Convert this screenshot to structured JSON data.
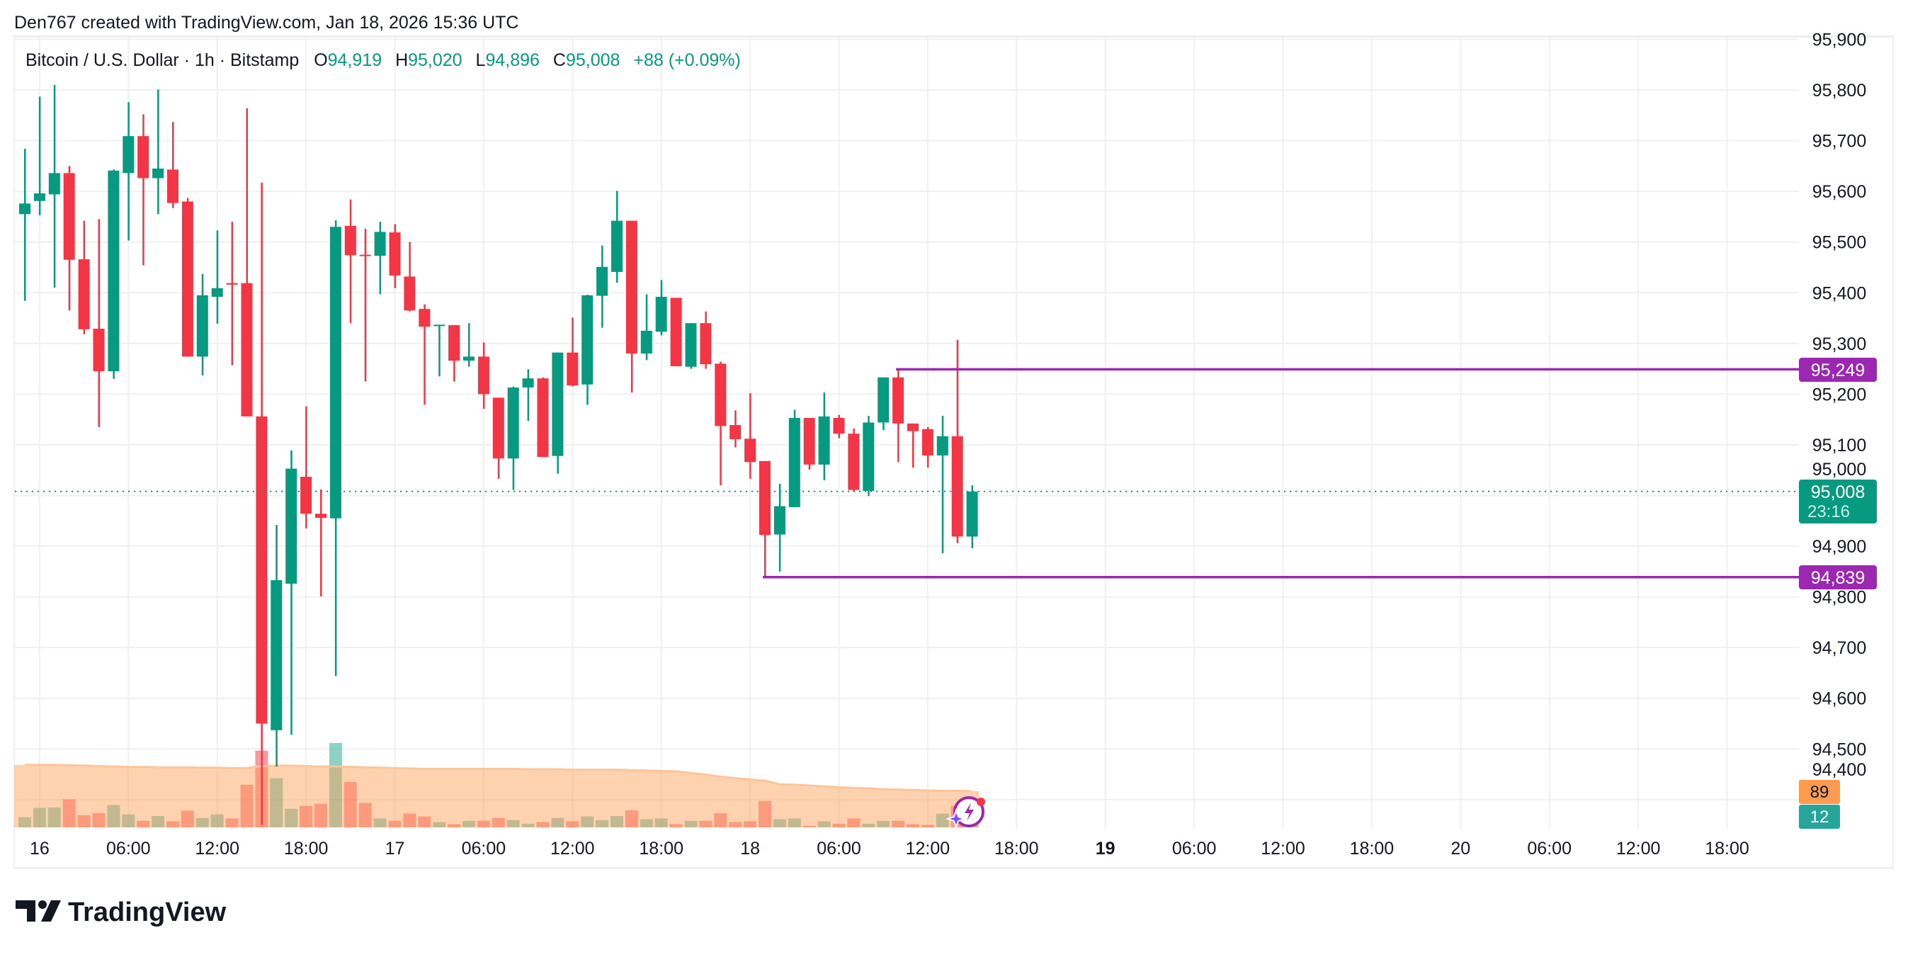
{
  "header": {
    "attribution": "Den767 created with TradingView.com, Jan 18, 2026 15:36 UTC"
  },
  "legend": {
    "symbol": "Bitcoin / U.S. Dollar · 1h · Bitstamp",
    "o_label": "O",
    "o": "94,919",
    "h_label": "H",
    "h": "95,020",
    "l_label": "L",
    "l": "94,896",
    "c_label": "C",
    "c": "95,008",
    "change": "+88 (+0.09%)"
  },
  "price_axis": {
    "labels": [
      "95,900",
      "95,800",
      "95,700",
      "95,600",
      "95,500",
      "95,400",
      "95,300",
      "95,200",
      "95,100",
      "95,000",
      "94,900",
      "94,800",
      "94,700",
      "94,600",
      "94,500",
      "94,400"
    ],
    "current_price": "95,008",
    "countdown": "23:16",
    "level_high": "95,249",
    "level_low": "94,839",
    "volume_ma_label": "89",
    "volume_label": "12"
  },
  "time_axis": {
    "labels": [
      {
        "text": "16",
        "bold": false
      },
      {
        "text": "06:00",
        "bold": false
      },
      {
        "text": "12:00",
        "bold": false
      },
      {
        "text": "18:00",
        "bold": false
      },
      {
        "text": "17",
        "bold": false
      },
      {
        "text": "06:00",
        "bold": false
      },
      {
        "text": "12:00",
        "bold": false
      },
      {
        "text": "18:00",
        "bold": false
      },
      {
        "text": "18",
        "bold": false
      },
      {
        "text": "06:00",
        "bold": false
      },
      {
        "text": "12:00",
        "bold": false
      },
      {
        "text": "18:00",
        "bold": false
      },
      {
        "text": "19",
        "bold": true
      },
      {
        "text": "06:00",
        "bold": false
      },
      {
        "text": "12:00",
        "bold": false
      },
      {
        "text": "18:00",
        "bold": false
      },
      {
        "text": "20",
        "bold": false
      },
      {
        "text": "06:00",
        "bold": false
      },
      {
        "text": "12:00",
        "bold": false
      },
      {
        "text": "18:00",
        "bold": false
      }
    ]
  },
  "logo": {
    "text": "TradingView"
  },
  "colors": {
    "up": "#089981",
    "down": "#f23645",
    "level": "#9c27b0",
    "volume_ma": "#ff9b4e",
    "text": "#131722",
    "grid": "#f0f0f0"
  },
  "chart_data": {
    "type": "candlestick",
    "interval": "1h",
    "first_candle": "Jan 15 23:00",
    "ylim": [
      94340,
      95920
    ],
    "current_price": 95008,
    "levels": [
      {
        "price": 95249,
        "from_index": 59
      },
      {
        "price": 94839,
        "from_index": 50
      }
    ],
    "ohlc": [
      [
        95555,
        95684,
        95384,
        95576
      ],
      [
        95581,
        95787,
        95553,
        95596
      ],
      [
        95594,
        95810,
        95410,
        95636
      ],
      [
        95636,
        95650,
        95365,
        95465
      ],
      [
        95466,
        95542,
        95318,
        95328
      ],
      [
        95329,
        95545,
        95135,
        95245
      ],
      [
        95245,
        95643,
        95230,
        95641
      ],
      [
        95636,
        95776,
        95503,
        95709
      ],
      [
        95709,
        95752,
        95454,
        95626
      ],
      [
        95626,
        95801,
        95555,
        95645
      ],
      [
        95643,
        95737,
        95567,
        95577
      ],
      [
        95580,
        95587,
        95274,
        95274
      ],
      [
        95274,
        95437,
        95237,
        95395
      ],
      [
        95392,
        95523,
        95339,
        95409
      ],
      [
        95419,
        95540,
        95257,
        95416
      ],
      [
        95419,
        95764,
        95156,
        95156
      ],
      [
        95156,
        95617,
        94350,
        94550
      ],
      [
        94537,
        94942,
        94465,
        94833
      ],
      [
        94826,
        95089,
        94528,
        95053
      ],
      [
        95037,
        95176,
        94935,
        94964
      ],
      [
        94964,
        95012,
        94801,
        94956
      ],
      [
        94955,
        95543,
        94644,
        95530
      ],
      [
        95532,
        95584,
        95340,
        95474
      ],
      [
        95475,
        95526,
        95225,
        95474
      ],
      [
        95473,
        95540,
        95397,
        95520
      ],
      [
        95519,
        95535,
        95409,
        95434
      ],
      [
        95432,
        95500,
        95363,
        95365
      ],
      [
        95368,
        95377,
        95179,
        95333
      ],
      [
        95335,
        95337,
        95235,
        95337
      ],
      [
        95336,
        95336,
        95225,
        95266
      ],
      [
        95266,
        95340,
        95254,
        95274
      ],
      [
        95274,
        95302,
        95171,
        95200
      ],
      [
        95193,
        95193,
        95033,
        95073
      ],
      [
        95073,
        95215,
        95011,
        95213
      ],
      [
        95213,
        95249,
        95147,
        95231
      ],
      [
        95231,
        95233,
        95076,
        95076
      ],
      [
        95078,
        95282,
        95043,
        95282
      ],
      [
        95282,
        95351,
        95215,
        95217
      ],
      [
        95219,
        95396,
        95179,
        95395
      ],
      [
        95394,
        95493,
        95331,
        95451
      ],
      [
        95441,
        95601,
        95420,
        95542
      ],
      [
        95542,
        95542,
        95203,
        95280
      ],
      [
        95280,
        95397,
        95267,
        95325
      ],
      [
        95323,
        95425,
        95316,
        95392
      ],
      [
        95390,
        95390,
        95255,
        95255
      ],
      [
        95254,
        95340,
        95250,
        95340
      ],
      [
        95340,
        95363,
        95250,
        95259
      ],
      [
        95260,
        95264,
        95020,
        95137
      ],
      [
        95139,
        95168,
        95095,
        95111
      ],
      [
        95112,
        95202,
        95033,
        95066
      ],
      [
        95068,
        95068,
        94839,
        94922
      ],
      [
        94923,
        95023,
        94850,
        94979
      ],
      [
        94977,
        95169,
        94977,
        95153
      ],
      [
        95153,
        95153,
        95051,
        95061
      ],
      [
        95061,
        95203,
        95030,
        95156
      ],
      [
        95153,
        95159,
        95113,
        95122
      ],
      [
        95122,
        95132,
        95008,
        95011
      ],
      [
        95009,
        95157,
        94999,
        95144
      ],
      [
        95144,
        95233,
        95129,
        95233
      ],
      [
        95233,
        95249,
        95066,
        95142
      ],
      [
        95142,
        95142,
        95055,
        95127
      ],
      [
        95131,
        95135,
        95055,
        95079
      ],
      [
        95079,
        95157,
        94886,
        95117
      ],
      [
        95117,
        95307,
        94906,
        94919
      ],
      [
        94919,
        95020,
        94896,
        95008
      ]
    ],
    "volume": [
      25,
      48,
      49,
      69,
      30,
      35,
      55,
      32,
      16,
      28,
      15,
      41,
      23,
      32,
      22,
      105,
      189,
      121,
      46,
      53,
      58,
      208,
      112,
      60,
      22,
      16,
      34,
      27,
      13,
      8,
      16,
      16,
      23,
      18,
      9,
      13,
      23,
      15,
      27,
      18,
      28,
      42,
      20,
      22,
      8,
      16,
      16,
      35,
      13,
      15,
      65,
      20,
      22,
      4,
      15,
      9,
      22,
      9,
      16,
      16,
      8,
      6,
      34,
      53,
      12
    ],
    "volume_ma": [
      154,
      154,
      154,
      153,
      152,
      151,
      150,
      149,
      149,
      148,
      148,
      148,
      147,
      147,
      146,
      146,
      151,
      152,
      152,
      151,
      150,
      150,
      149,
      148,
      147,
      146,
      145,
      144,
      144,
      144,
      144,
      144,
      144,
      144,
      143,
      143,
      143,
      142,
      142,
      142,
      142,
      141,
      140,
      139,
      138,
      134,
      130,
      125,
      121,
      118,
      115,
      106,
      105,
      103,
      101,
      99,
      97,
      96,
      94,
      93,
      92,
      91,
      90,
      90,
      89
    ]
  }
}
